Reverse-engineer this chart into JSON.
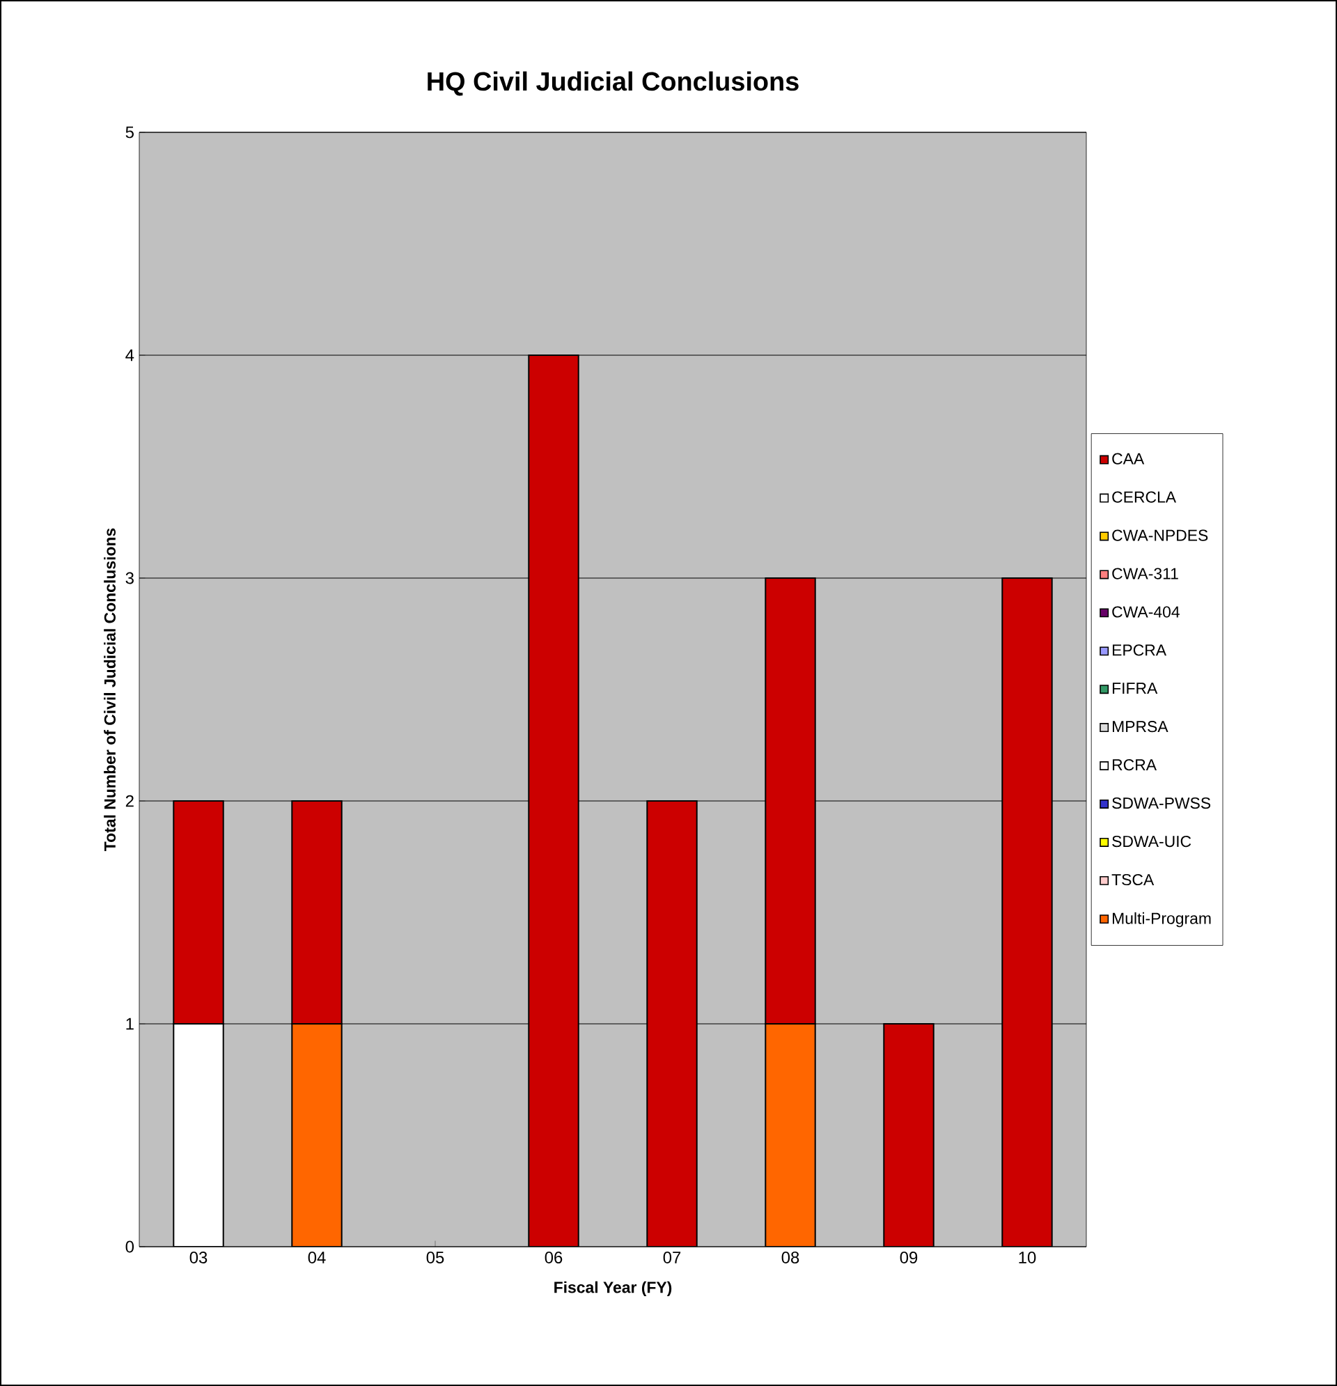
{
  "chart_data": {
    "type": "bar",
    "title": "HQ Civil Judicial Conclusions",
    "xlabel": "Fiscal Year (FY)",
    "ylabel": "Total Number of Civil Judicial Conclusions",
    "categories": [
      "03",
      "04",
      "05",
      "06",
      "07",
      "08",
      "09",
      "10"
    ],
    "stacked": true,
    "ylim": [
      0,
      5
    ],
    "yticks": [
      0,
      1,
      2,
      3,
      4,
      5
    ],
    "grid": "y",
    "legend": "right",
    "series": [
      {
        "name": "Multi-Program",
        "color": "#ff6600",
        "values": [
          0,
          1,
          0,
          0,
          0,
          1,
          0,
          0
        ]
      },
      {
        "name": "TSCA",
        "color": "#ffcccc",
        "values": [
          0,
          0,
          0,
          0,
          0,
          0,
          0,
          0
        ]
      },
      {
        "name": "SDWA-UIC",
        "color": "#ffff00",
        "values": [
          0,
          0,
          0,
          0,
          0,
          0,
          0,
          0
        ]
      },
      {
        "name": "SDWA-PWSS",
        "color": "#3333cc",
        "values": [
          0,
          0,
          0,
          0,
          0,
          0,
          0,
          0
        ]
      },
      {
        "name": "RCRA",
        "color": "#ffffff",
        "values": [
          0,
          0,
          0,
          0,
          0,
          0,
          0,
          0
        ]
      },
      {
        "name": "MPRSA",
        "color": "#dddddd",
        "values": [
          0,
          0,
          0,
          0,
          0,
          0,
          0,
          0
        ]
      },
      {
        "name": "FIFRA",
        "color": "#339966",
        "values": [
          0,
          0,
          0,
          0,
          0,
          0,
          0,
          0
        ]
      },
      {
        "name": "EPCRA",
        "color": "#9999ff",
        "values": [
          0,
          0,
          0,
          0,
          0,
          0,
          0,
          0
        ]
      },
      {
        "name": "CWA-404",
        "color": "#660066",
        "values": [
          0,
          0,
          0,
          0,
          0,
          0,
          0,
          0
        ]
      },
      {
        "name": "CWA-311",
        "color": "#ff8080",
        "values": [
          0,
          0,
          0,
          0,
          0,
          0,
          0,
          0
        ]
      },
      {
        "name": "CWA-NPDES",
        "color": "#ffcc00",
        "values": [
          0,
          0,
          0,
          0,
          0,
          0,
          0,
          0
        ]
      },
      {
        "name": "CERCLA",
        "color": "#ffffff",
        "values": [
          1,
          0,
          0,
          0,
          0,
          0,
          0,
          0
        ]
      },
      {
        "name": "CAA",
        "color": "#cc0000",
        "values": [
          1,
          1,
          0,
          4,
          2,
          2,
          1,
          3
        ]
      }
    ]
  }
}
